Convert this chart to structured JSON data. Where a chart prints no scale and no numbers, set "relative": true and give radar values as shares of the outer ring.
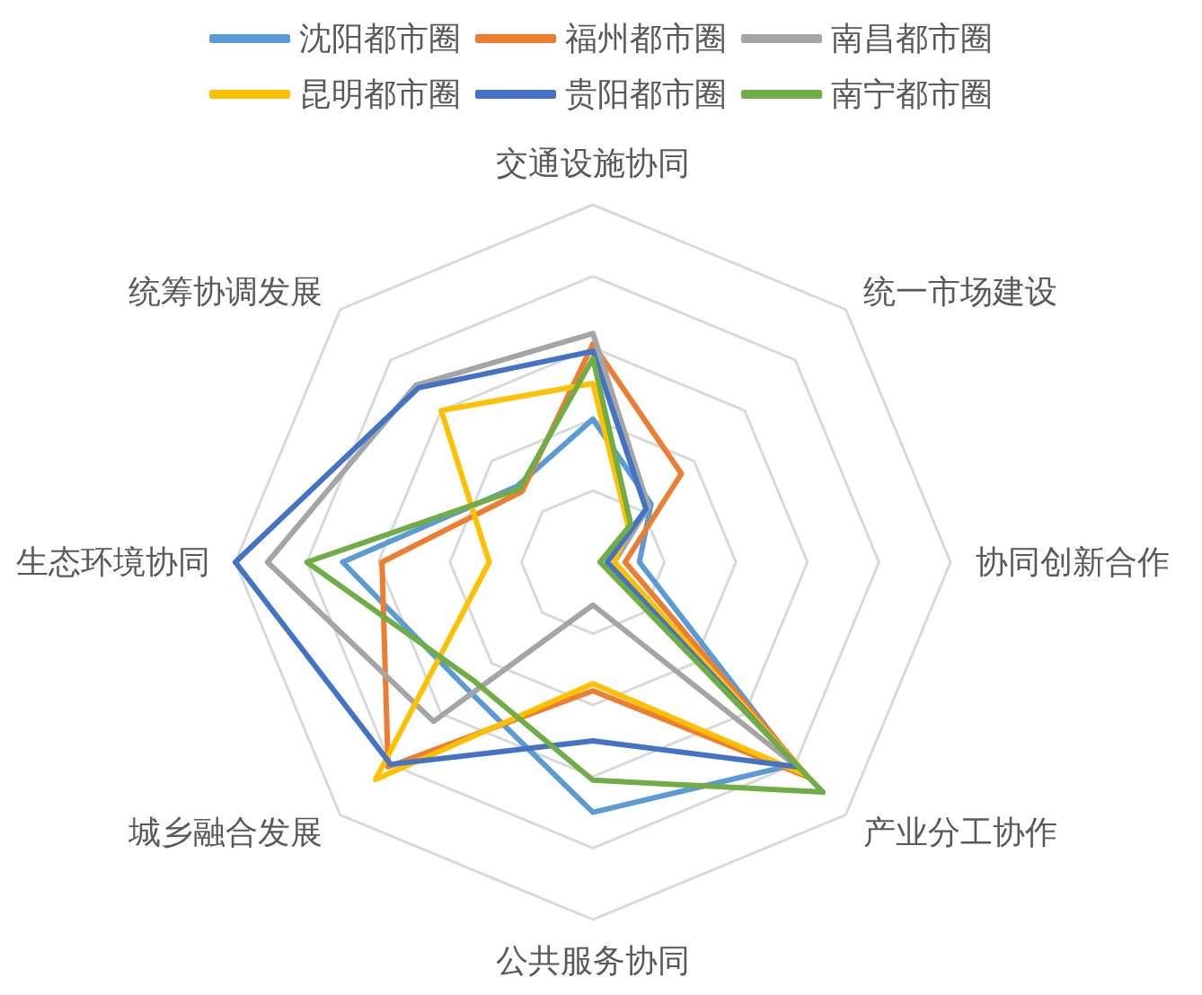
{
  "chart_data": {
    "type": "radar",
    "relative": true,
    "categories": [
      "交通设施协同",
      "统一市场建设",
      "协同创新合作",
      "产业分工协作",
      "公共服务协同",
      "城乡融合发展",
      "生态环境协同",
      "统筹协调发展"
    ],
    "series": [
      {
        "name": "沈阳都市圈",
        "color": "#5b9bd5",
        "values": [
          0.4,
          0.23,
          0.13,
          0.8,
          0.7,
          0.5,
          0.7,
          0.3
        ]
      },
      {
        "name": "福州都市圈",
        "color": "#ed7d31",
        "values": [
          0.61,
          0.35,
          0.09,
          0.85,
          0.36,
          0.81,
          0.59,
          0.28
        ]
      },
      {
        "name": "南昌都市圈",
        "color": "#a5a5a5",
        "values": [
          0.64,
          0.22,
          0.06,
          0.82,
          0.12,
          0.63,
          0.91,
          0.7
        ]
      },
      {
        "name": "昆明都市圈",
        "color": "#ffc000",
        "values": [
          0.5,
          0.14,
          0.06,
          0.84,
          0.34,
          0.86,
          0.29,
          0.6
        ]
      },
      {
        "name": "贵阳都市圈",
        "color": "#4472c4",
        "values": [
          0.59,
          0.21,
          0.04,
          0.81,
          0.5,
          0.8,
          1.0,
          0.69
        ]
      },
      {
        "name": "南宁都市圈",
        "color": "#70ad47",
        "values": [
          0.57,
          0.15,
          0.02,
          0.91,
          0.61,
          0.47,
          0.8,
          0.29
        ]
      }
    ],
    "legend": "top",
    "grid": true,
    "marker": "none",
    "line_style": "solid"
  }
}
